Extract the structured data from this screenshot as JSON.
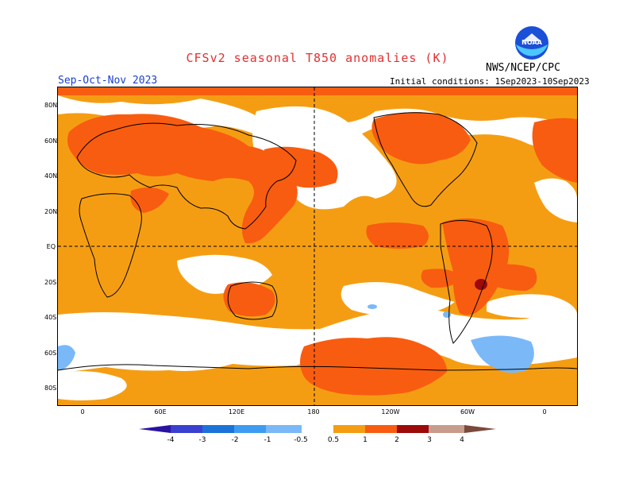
{
  "title": "CFSv2 seasonal T850 anomalies (K)",
  "agency": "NWS/NCEP/CPC",
  "season": "Sep-Oct-Nov 2023",
  "initial_conditions": "Initial conditions: 1Sep2023-10Sep2023",
  "logo": {
    "text": "NOAA",
    "icon": "noaa-logo-icon"
  },
  "map": {
    "lat_labels": [
      "80N",
      "60N",
      "40N",
      "20N",
      "EQ",
      "20S",
      "40S",
      "60S",
      "80S"
    ],
    "lon_labels": [
      "0",
      "60E",
      "120E",
      "180",
      "120W",
      "60W",
      "0"
    ]
  },
  "legend": {
    "labels": [
      "-4",
      "-3",
      "-2",
      "-1",
      "-0.5",
      "0.5",
      "1",
      "2",
      "3",
      "4"
    ],
    "colors": {
      "neg4": "#2a13a0",
      "neg3": "#3a40d0",
      "neg2": "#1c72d8",
      "neg1": "#3e9cf0",
      "neg05": "#7ab8f8",
      "neutral": "#ffffff",
      "pos05": "#f59d12",
      "pos1": "#f85c10",
      "pos2": "#e02a1a",
      "pos3": "#9c0a0a",
      "pos4": "#c89c8c",
      "pos5": "#7a4a3c"
    }
  }
}
